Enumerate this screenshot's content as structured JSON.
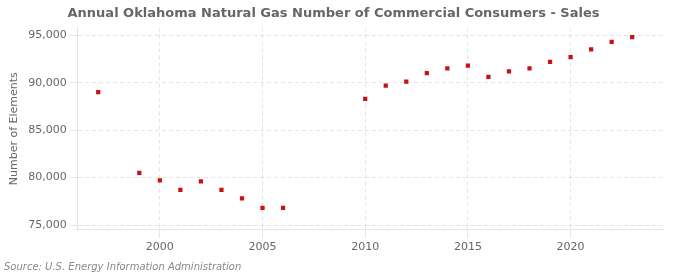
{
  "chart_data": {
    "type": "scatter",
    "title": "Annual Oklahoma Natural Gas Number of Commercial Consumers - Sales",
    "ylabel": "Number of Elements",
    "source": "Source: U.S. Energy Information Administration",
    "x": [
      1997,
      1999,
      2000,
      2001,
      2002,
      2003,
      2004,
      2005,
      2006,
      2010,
      2011,
      2012,
      2013,
      2014,
      2015,
      2016,
      2017,
      2018,
      2019,
      2020,
      2021,
      2022,
      2023
    ],
    "values": [
      89000,
      80500,
      79700,
      78700,
      79600,
      78700,
      77800,
      76800,
      76800,
      88300,
      89700,
      90100,
      91000,
      91500,
      91800,
      90600,
      91200,
      91500,
      92200,
      92700,
      93500,
      94300,
      94800
    ],
    "color": "#cc1111",
    "marker": "square",
    "xlim": [
      1996.0,
      2024.5
    ],
    "xticks": [
      2000,
      2005,
      2010,
      2015,
      2020
    ],
    "ylim": [
      74500,
      95800
    ],
    "yticks": [
      {
        "value": 75000,
        "label": "75,000"
      },
      {
        "value": 80000,
        "label": "80,000"
      },
      {
        "value": 85000,
        "label": "85,000"
      },
      {
        "value": 90000,
        "label": "90,000"
      },
      {
        "value": 95000,
        "label": "95,000"
      }
    ],
    "grid": true
  }
}
